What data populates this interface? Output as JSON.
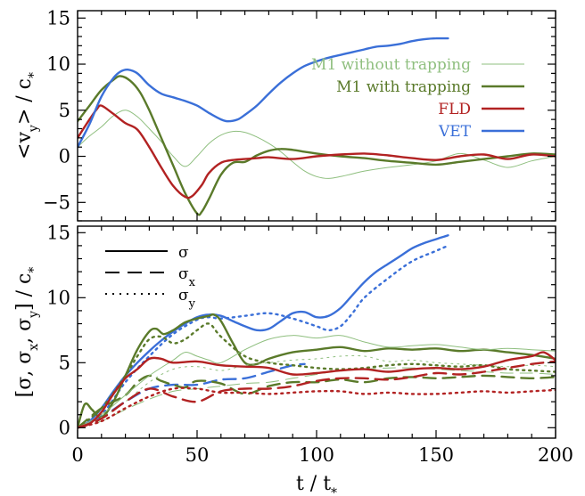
{
  "chart_data": [
    {
      "type": "line",
      "ylabel": "<v_y> / c_*",
      "xlim": [
        0,
        200
      ],
      "ylim": [
        -7,
        15.8
      ],
      "xticks": [
        0,
        50,
        100,
        150,
        200
      ],
      "yticks": [
        -5,
        0,
        5,
        10,
        15
      ],
      "xtick_labels_shown": false,
      "legend": {
        "placement": "top-right",
        "entries": [
          "M1 without trapping",
          "M1 with trapping",
          "FLD",
          "VET"
        ]
      },
      "series": [
        {
          "name": "M1 without trapping",
          "color": "#8fbf7f",
          "width": 1.0,
          "style": "solid",
          "x": [
            0,
            5,
            10,
            15,
            20,
            25,
            30,
            35,
            40,
            45,
            50,
            55,
            60,
            65,
            70,
            75,
            80,
            85,
            90,
            95,
            100,
            105,
            110,
            115,
            120,
            130,
            140,
            150,
            160,
            170,
            180,
            190,
            200
          ],
          "y": [
            1,
            2.2,
            3.2,
            4.4,
            5,
            4.3,
            3,
            1.6,
            0,
            -1.1,
            0,
            1.4,
            2.3,
            2.7,
            2.6,
            2.1,
            1.4,
            0.5,
            -0.6,
            -1.6,
            -2.2,
            -2.4,
            -2.2,
            -1.9,
            -1.6,
            -1.2,
            -0.9,
            -0.5,
            0.3,
            -0.4,
            -1.2,
            -0.5,
            0
          ]
        },
        {
          "name": "M1 with trapping",
          "color": "#5a7a2a",
          "width": 2.4,
          "style": "solid",
          "x": [
            0,
            5,
            10,
            15,
            18,
            22,
            26,
            30,
            35,
            40,
            45,
            50,
            52,
            55,
            60,
            65,
            70,
            75,
            80,
            85,
            90,
            95,
            100,
            110,
            120,
            130,
            140,
            150,
            160,
            170,
            180,
            190,
            200
          ],
          "y": [
            3.8,
            5.5,
            7.2,
            8.3,
            8.7,
            8.2,
            7,
            5,
            2,
            -1,
            -4,
            -6.2,
            -6,
            -4.6,
            -2,
            -0.7,
            -0.6,
            0.1,
            0.6,
            0.8,
            0.7,
            0.5,
            0.3,
            0,
            -0.2,
            -0.5,
            -0.7,
            -0.9,
            -0.6,
            -0.3,
            0,
            0.3,
            0.2
          ]
        },
        {
          "name": "FLD",
          "color": "#b22222",
          "width": 2.4,
          "style": "solid",
          "x": [
            0,
            5,
            8,
            10,
            15,
            20,
            25,
            30,
            35,
            40,
            45,
            48,
            52,
            55,
            60,
            65,
            70,
            75,
            80,
            90,
            100,
            110,
            120,
            130,
            140,
            150,
            160,
            170,
            180,
            190,
            200
          ],
          "y": [
            2,
            4,
            5.1,
            5.5,
            4.6,
            3.6,
            2.9,
            1,
            -1.2,
            -3.2,
            -4.4,
            -4.3,
            -3.1,
            -1.8,
            -0.7,
            -0.4,
            -0.3,
            -0.2,
            -0.1,
            -0.3,
            0,
            0.2,
            0.3,
            0.1,
            -0.2,
            -0.4,
            0,
            0.2,
            -0.3,
            0.2,
            0
          ]
        },
        {
          "name": "VET",
          "color": "#3a6fd8",
          "width": 2.4,
          "style": "solid",
          "x": [
            0,
            5,
            10,
            15,
            18,
            21,
            25,
            30,
            35,
            40,
            45,
            50,
            55,
            60,
            63,
            67,
            70,
            75,
            80,
            85,
            90,
            95,
            100,
            105,
            110,
            115,
            120,
            125,
            130,
            135,
            140,
            145,
            150,
            155
          ],
          "y": [
            1,
            3.5,
            6.5,
            8.5,
            9.2,
            9.4,
            9,
            7.7,
            6.8,
            6.4,
            6,
            5.5,
            4.7,
            4,
            3.8,
            4,
            4.5,
            5.5,
            6.8,
            8,
            9,
            9.8,
            10.3,
            10.7,
            11,
            11.3,
            11.6,
            11.9,
            12,
            12.2,
            12.5,
            12.7,
            12.8,
            12.8
          ]
        }
      ]
    },
    {
      "type": "line",
      "xlabel": "t / t_*",
      "ylabel": "[σ, σ_x, σ_y] / c_*",
      "xlim": [
        0,
        200
      ],
      "ylim": [
        -0.8,
        15.5
      ],
      "xticks": [
        0,
        50,
        100,
        150,
        200
      ],
      "yticks": [
        0,
        5,
        10,
        15
      ],
      "legend": {
        "placement": "top-left",
        "entries": [
          {
            "label": "σ",
            "sub": "",
            "style": "solid"
          },
          {
            "label": "σ",
            "sub": "x",
            "style": "dashed"
          },
          {
            "label": "σ",
            "sub": "y",
            "style": "dotted"
          }
        ]
      },
      "series": [
        {
          "model": "VET",
          "quantity": "σ",
          "color": "#3a6fd8",
          "width": 2.4,
          "style": "solid",
          "x": [
            0,
            5,
            10,
            15,
            20,
            25,
            30,
            35,
            40,
            45,
            50,
            55,
            60,
            65,
            70,
            75,
            80,
            85,
            90,
            95,
            100,
            105,
            110,
            115,
            120,
            125,
            130,
            135,
            140,
            145,
            150,
            155
          ],
          "y": [
            0,
            0.5,
            1.5,
            2.8,
            4,
            5,
            5.9,
            6.7,
            7.4,
            8,
            8.5,
            8.7,
            8.6,
            8.2,
            7.8,
            7.5,
            7.6,
            8.2,
            8.8,
            8.9,
            8.5,
            8.6,
            9.2,
            10.2,
            11.2,
            12,
            12.6,
            13.2,
            13.8,
            14.2,
            14.5,
            14.8
          ]
        },
        {
          "model": "VET",
          "quantity": "σ_y",
          "color": "#3a6fd8",
          "width": 2.4,
          "style": "dotted",
          "x": [
            0,
            10,
            20,
            30,
            40,
            50,
            55,
            60,
            70,
            80,
            90,
            100,
            105,
            110,
            115,
            120,
            130,
            140,
            150,
            155
          ],
          "y": [
            0,
            1,
            3.5,
            5.5,
            7.2,
            8.3,
            8.5,
            8.4,
            8.6,
            8.8,
            8.4,
            7.8,
            7.5,
            7.8,
            8.8,
            10,
            11.5,
            12.8,
            13.6,
            14
          ]
        },
        {
          "model": "VET",
          "quantity": "σ_x",
          "color": "#3a6fd8",
          "width": 2.4,
          "style": "dashed",
          "x": [
            0,
            10,
            20,
            30,
            40,
            50,
            60,
            70,
            80,
            90,
            95
          ],
          "y": [
            0,
            0.8,
            2,
            3,
            3.3,
            3.3,
            3.7,
            3.8,
            4.3,
            4.8,
            4.9
          ]
        },
        {
          "model": "M1 with trapping",
          "quantity": "σ",
          "color": "#5a7a2a",
          "width": 2.4,
          "style": "solid",
          "x": [
            0,
            3,
            6,
            10,
            15,
            20,
            25,
            30,
            33,
            36,
            40,
            45,
            50,
            55,
            57,
            60,
            65,
            70,
            75,
            80,
            90,
            100,
            110,
            120,
            130,
            140,
            150,
            160,
            170,
            180,
            190,
            200
          ],
          "y": [
            0,
            1.8,
            1.4,
            0.8,
            2,
            4,
            6,
            7.4,
            7.6,
            7.2,
            7.5,
            8.1,
            8.4,
            8.6,
            8.7,
            8.2,
            6.5,
            5,
            4.9,
            5.3,
            5.8,
            6,
            6.2,
            5.9,
            6.1,
            6,
            6.1,
            5.9,
            6,
            5.8,
            5.6,
            5.3
          ]
        },
        {
          "model": "M1 with trapping",
          "quantity": "σ_y",
          "color": "#5a7a2a",
          "width": 2.4,
          "style": "dotted",
          "x": [
            0,
            10,
            20,
            25,
            30,
            35,
            40,
            45,
            50,
            55,
            60,
            70,
            80,
            90,
            100,
            110,
            120,
            130,
            140,
            150,
            160,
            170,
            180,
            190,
            200
          ],
          "y": [
            0,
            1.5,
            4,
            5.5,
            6.8,
            7,
            6.5,
            6.8,
            7.5,
            8,
            7,
            5.5,
            5,
            4.8,
            4.6,
            4.5,
            4.6,
            4.8,
            4.9,
            4.8,
            4.7,
            4.8,
            4.5,
            4.4,
            4.3
          ]
        },
        {
          "model": "M1 with trapping",
          "quantity": "σ_x",
          "color": "#5a7a2a",
          "width": 2.4,
          "style": "dashed",
          "x": [
            0,
            10,
            20,
            25,
            30,
            35,
            40,
            45,
            50,
            60,
            70,
            80,
            90,
            100,
            110,
            120,
            130,
            140,
            150,
            160,
            170,
            180,
            190,
            200
          ],
          "y": [
            0,
            1.5,
            2.5,
            3.5,
            4,
            3.6,
            3.3,
            3.1,
            3.6,
            3.4,
            2.6,
            3.2,
            3.5,
            3.5,
            3.7,
            3.5,
            3.8,
            3.9,
            3.8,
            3.9,
            4,
            3.9,
            3.8,
            3.9
          ]
        },
        {
          "model": "M1 without trapping",
          "quantity": "σ",
          "color": "#8fbf7f",
          "width": 1.0,
          "style": "solid",
          "x": [
            0,
            10,
            20,
            30,
            40,
            45,
            50,
            55,
            60,
            70,
            80,
            90,
            100,
            110,
            120,
            130,
            140,
            150,
            160,
            170,
            180,
            190,
            200
          ],
          "y": [
            0,
            1,
            2.5,
            4,
            5.2,
            5.8,
            5.5,
            5.2,
            5,
            6,
            6.8,
            7.1,
            6.9,
            7.1,
            6.6,
            6.2,
            6.3,
            6.4,
            6.2,
            6,
            6.1,
            6,
            5.9
          ]
        },
        {
          "model": "M1 without trapping",
          "quantity": "σ_y",
          "color": "#8fbf7f",
          "width": 1.0,
          "style": "dotted",
          "x": [
            0,
            10,
            20,
            30,
            40,
            50,
            60,
            70,
            80,
            90,
            100,
            110,
            120,
            130,
            140,
            150,
            160,
            170,
            180,
            190,
            200
          ],
          "y": [
            0,
            0.8,
            2,
            3.5,
            4.5,
            4.7,
            4.4,
            4.8,
            5,
            5.2,
            5.3,
            5.5,
            5.5,
            5.1,
            5.2,
            5,
            4.9,
            4.8,
            4.7,
            4.8,
            4.7
          ]
        },
        {
          "model": "M1 without trapping",
          "quantity": "σ_x",
          "color": "#8fbf7f",
          "width": 1.0,
          "style": "dashed",
          "x": [
            0,
            10,
            20,
            30,
            40,
            50,
            60,
            70,
            80,
            90,
            100,
            110,
            120,
            130,
            140,
            150,
            160,
            170,
            180,
            190,
            200
          ],
          "y": [
            0,
            0.5,
            1.4,
            2.2,
            2.8,
            3,
            3.2,
            3.4,
            3.5,
            3.8,
            4.1,
            4.4,
            4.5,
            4.6,
            4.6,
            4.5,
            4.4,
            4.3,
            4.2,
            4.2,
            4.1
          ]
        },
        {
          "model": "FLD",
          "quantity": "σ",
          "color": "#b22222",
          "width": 2.4,
          "style": "solid",
          "x": [
            0,
            5,
            10,
            15,
            20,
            25,
            30,
            35,
            40,
            50,
            60,
            70,
            80,
            90,
            100,
            110,
            120,
            130,
            140,
            150,
            160,
            170,
            180,
            190,
            195,
            200
          ],
          "y": [
            0,
            0.3,
            1.2,
            2.6,
            3.8,
            4.5,
            5.3,
            5.3,
            5,
            5.1,
            4.8,
            4.7,
            4.6,
            4.1,
            4.2,
            4.4,
            4.5,
            4.3,
            4.5,
            4.6,
            4.5,
            4.7,
            5.2,
            5.5,
            5.8,
            5.2
          ]
        },
        {
          "model": "FLD",
          "quantity": "σ_x",
          "color": "#b22222",
          "width": 2.4,
          "style": "dashed",
          "x": [
            0,
            10,
            20,
            30,
            40,
            50,
            60,
            70,
            80,
            90,
            100,
            110,
            120,
            130,
            140,
            150,
            160,
            170,
            180,
            190,
            200
          ],
          "y": [
            0,
            0.7,
            2,
            3,
            2.4,
            2,
            2.8,
            3,
            3,
            3.2,
            3.6,
            3.8,
            3.8,
            3.7,
            3.9,
            4.2,
            4.1,
            4.3,
            4.6,
            4.9,
            5.1
          ]
        },
        {
          "model": "FLD",
          "quantity": "σ_y",
          "color": "#b22222",
          "width": 2.4,
          "style": "dotted",
          "x": [
            0,
            10,
            20,
            30,
            40,
            50,
            60,
            70,
            80,
            90,
            100,
            110,
            120,
            130,
            140,
            150,
            160,
            170,
            180,
            190,
            200
          ],
          "y": [
            0,
            0.5,
            1.5,
            2.4,
            3,
            3,
            2.7,
            2.7,
            2.6,
            2.7,
            2.8,
            2.8,
            2.6,
            2.7,
            2.6,
            2.6,
            2.7,
            2.8,
            2.7,
            2.8,
            2.9
          ]
        }
      ]
    }
  ]
}
